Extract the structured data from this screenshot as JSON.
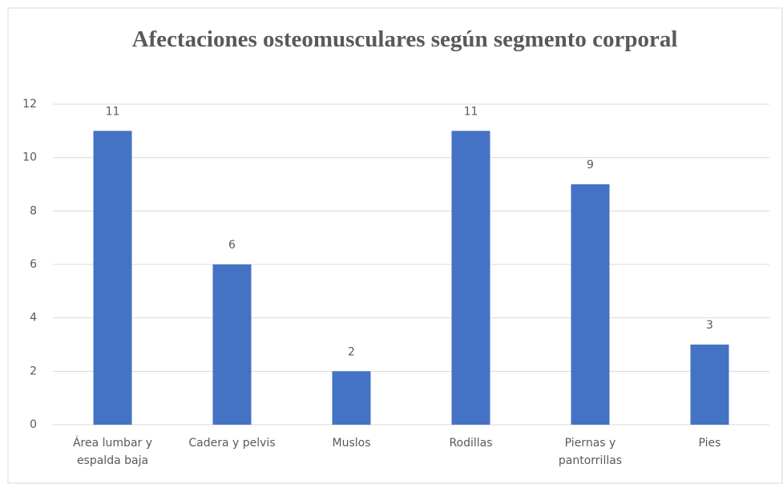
{
  "chart_data": {
    "type": "bar",
    "title": "Afectaciones osteomusculares según segmento corporal",
    "categories": [
      "Área lumbar y espalda baja",
      "Cadera y pelvis",
      "Muslos",
      "Rodillas",
      "Piernas y pantorrillas",
      "Pies"
    ],
    "values": [
      11,
      6,
      2,
      11,
      9,
      3
    ],
    "color": "#4472c4",
    "ylim": [
      0,
      12
    ],
    "yticks": [
      0,
      2,
      4,
      6,
      8,
      10,
      12
    ],
    "grid": true
  }
}
